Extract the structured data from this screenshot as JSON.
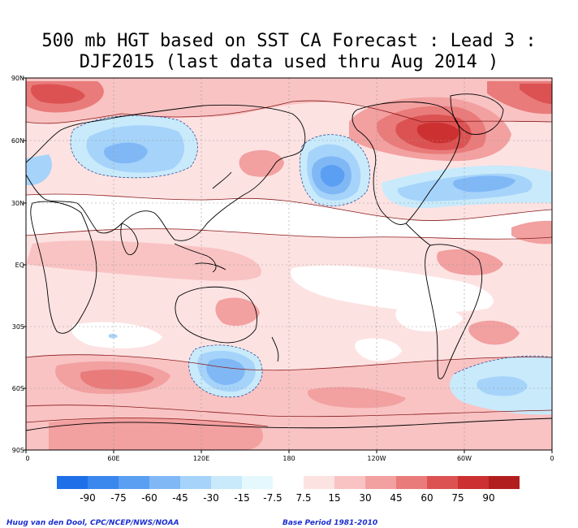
{
  "title": {
    "line1": "500 mb HGT based on SST CA Forecast : Lead 3 :",
    "line2": "DJF2015 (last data used thru Aug 2014 )"
  },
  "axes": {
    "y_labels": [
      "90N",
      "60N",
      "30N",
      "EQ",
      "30S",
      "60S",
      "90S"
    ],
    "x_labels": [
      "0",
      "60E",
      "120E",
      "180",
      "120W",
      "60W",
      "0"
    ]
  },
  "colorbar": {
    "labels": [
      "-90",
      "-75",
      "-60",
      "-45",
      "-30",
      "-15",
      "-7.5",
      "7.5",
      "15",
      "30",
      "45",
      "60",
      "75",
      "90"
    ],
    "colors": [
      "#1f6fe8",
      "#3a87ee",
      "#5a9ff2",
      "#80b8f6",
      "#a6d3fa",
      "#c8eafb",
      "#e4f8fe",
      "#ffffff",
      "#fde2e2",
      "#f9c3c3",
      "#f2a0a0",
      "#e97b7b",
      "#dc5252",
      "#cc3030",
      "#b21e1e"
    ]
  },
  "footer": {
    "credit": "Huug van den Dool, CPC/NCEP/NWS/NOAA",
    "base_period": "Base Period 1981-2010"
  },
  "map_colors": {
    "ocean_base": "#fde2e2",
    "land_outline": "#000000",
    "contour": "#8a1a1a",
    "neg_contour": "#1a3a8a"
  }
}
